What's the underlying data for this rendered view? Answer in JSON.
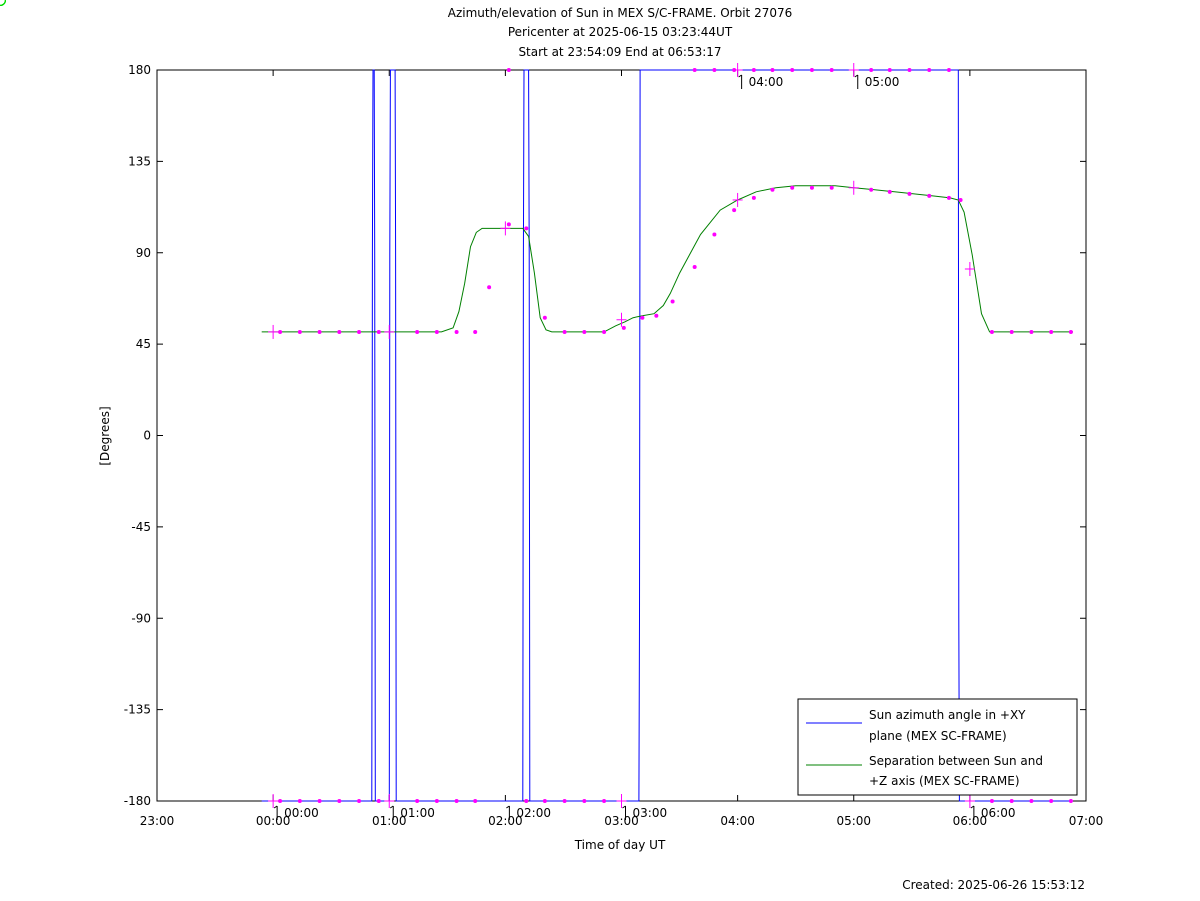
{
  "chart_data": {
    "type": "line",
    "title": "Azimuth/elevation of Sun in MEX S/C-FRAME.  Orbit 27076",
    "subtitle": "Pericenter at 2025-06-15 03:23:44UT",
    "subtitle2": "Start at 23:54:09 End at 06:53:17",
    "xlabel": "Time of day UT",
    "ylabel": "[Degrees]",
    "footer": "Created: 2025-06-26 15:53:12",
    "x_unit": "hours since 23:00 UT",
    "xlim": [
      0,
      8
    ],
    "ylim": [
      -180,
      180
    ],
    "x_ticks": [
      {
        "x": 0,
        "label": "23:00"
      },
      {
        "x": 1,
        "label": "00:00"
      },
      {
        "x": 2,
        "label": "01:00"
      },
      {
        "x": 3,
        "label": "02:00"
      },
      {
        "x": 4,
        "label": "03:00"
      },
      {
        "x": 5,
        "label": "04:00"
      },
      {
        "x": 6,
        "label": "05:00"
      },
      {
        "x": 7,
        "label": "06:00"
      },
      {
        "x": 8,
        "label": "07:00"
      }
    ],
    "y_ticks": [
      {
        "y": 180,
        "label": "180"
      },
      {
        "y": 135,
        "label": "135"
      },
      {
        "y": 90,
        "label": "90"
      },
      {
        "y": 45,
        "label": "45"
      },
      {
        "y": 0,
        "label": "0"
      },
      {
        "y": -45,
        "label": "-45"
      },
      {
        "y": -90,
        "label": "-90"
      },
      {
        "y": -135,
        "label": "-135"
      },
      {
        "y": -180,
        "label": "-180"
      }
    ],
    "hour_marks": [
      {
        "x": 1.0,
        "y": -180,
        "label": "00:00"
      },
      {
        "x": 2.0,
        "y": -180,
        "label": "01:00"
      },
      {
        "x": 3.0,
        "y": -180,
        "label": "02:00"
      },
      {
        "x": 4.0,
        "y": -180,
        "label": "03:00"
      },
      {
        "x": 5.0,
        "y": 180,
        "label": "04:00"
      },
      {
        "x": 6.0,
        "y": 180,
        "label": "05:00"
      },
      {
        "x": 7.0,
        "y": -180,
        "label": "06:00"
      }
    ],
    "circle_marks": [
      {
        "x": 0.902,
        "y": 51
      },
      {
        "x": 0.902,
        "y": -180
      },
      {
        "x": 4.396,
        "y": 71
      },
      {
        "x": 4.396,
        "y": 180
      },
      {
        "x": 7.888,
        "y": 51
      },
      {
        "x": 7.888,
        "y": -180
      }
    ],
    "series": [
      {
        "name": "Sun azimuth angle in +XY plane (MEX SC-FRAME)",
        "color": "#0000ff",
        "points": [
          [
            0.902,
            -180
          ],
          [
            1.85,
            -180
          ],
          [
            1.855,
            90
          ],
          [
            1.86,
            180
          ],
          [
            1.87,
            180
          ],
          [
            1.875,
            90
          ],
          [
            1.88,
            -180
          ],
          [
            2.0,
            -180
          ],
          [
            2.005,
            90
          ],
          [
            2.01,
            180
          ],
          [
            2.05,
            180
          ],
          [
            2.055,
            90
          ],
          [
            2.06,
            -180
          ],
          [
            2.07,
            -180
          ],
          [
            3.15,
            -180
          ],
          [
            3.155,
            90
          ],
          [
            3.16,
            180
          ],
          [
            3.2,
            180
          ],
          [
            3.205,
            90
          ],
          [
            3.21,
            -180
          ],
          [
            4.15,
            -180
          ],
          [
            4.155,
            -90
          ],
          [
            4.16,
            180
          ],
          [
            6.9,
            180
          ],
          [
            6.905,
            -90
          ],
          [
            6.91,
            -180
          ],
          [
            7.888,
            -180
          ]
        ]
      },
      {
        "name": "Separation between Sun and +Z axis (MEX SC-FRAME)",
        "color": "#008000",
        "points": [
          [
            0.902,
            51
          ],
          [
            1.5,
            51
          ],
          [
            2.0,
            51
          ],
          [
            2.45,
            51
          ],
          [
            2.55,
            53
          ],
          [
            2.6,
            61
          ],
          [
            2.65,
            75
          ],
          [
            2.7,
            93
          ],
          [
            2.75,
            100
          ],
          [
            2.8,
            102
          ],
          [
            3.0,
            102
          ],
          [
            3.15,
            102
          ],
          [
            3.2,
            98
          ],
          [
            3.25,
            80
          ],
          [
            3.3,
            58
          ],
          [
            3.35,
            52
          ],
          [
            3.4,
            51
          ],
          [
            3.5,
            51
          ],
          [
            3.85,
            51
          ],
          [
            3.95,
            54
          ],
          [
            4.03,
            56
          ],
          [
            4.1,
            58
          ],
          [
            4.18,
            59
          ],
          [
            4.28,
            60
          ],
          [
            4.36,
            64
          ],
          [
            4.42,
            70
          ],
          [
            4.5,
            80
          ],
          [
            4.68,
            99
          ],
          [
            4.85,
            111
          ],
          [
            5.0,
            116
          ],
          [
            5.16,
            120
          ],
          [
            5.33,
            122
          ],
          [
            5.5,
            123
          ],
          [
            5.67,
            123
          ],
          [
            5.84,
            123
          ],
          [
            6.0,
            122
          ],
          [
            6.18,
            121
          ],
          [
            6.35,
            120
          ],
          [
            6.52,
            119
          ],
          [
            6.68,
            118
          ],
          [
            6.83,
            117
          ],
          [
            6.9,
            116
          ],
          [
            6.95,
            110
          ],
          [
            7.02,
            89
          ],
          [
            7.1,
            60
          ],
          [
            7.17,
            51
          ],
          [
            7.3,
            51
          ],
          [
            7.6,
            51
          ],
          [
            7.888,
            51
          ]
        ]
      }
    ],
    "sample_markers": {
      "color": "#ff00ff",
      "points": [
        [
          1.06,
          51
        ],
        [
          1.23,
          51
        ],
        [
          1.4,
          51
        ],
        [
          1.57,
          51
        ],
        [
          1.74,
          51
        ],
        [
          1.91,
          51
        ],
        [
          2.24,
          51
        ],
        [
          2.41,
          51
        ],
        [
          2.58,
          51
        ],
        [
          2.74,
          51
        ],
        [
          2.86,
          73
        ],
        [
          3.03,
          104
        ],
        [
          3.18,
          102
        ],
        [
          3.34,
          58
        ],
        [
          3.51,
          51
        ],
        [
          3.68,
          51
        ],
        [
          3.85,
          51
        ],
        [
          4.02,
          53
        ],
        [
          4.18,
          58
        ],
        [
          4.3,
          59
        ],
        [
          4.44,
          66
        ],
        [
          4.63,
          83
        ],
        [
          4.8,
          99
        ],
        [
          4.97,
          111
        ],
        [
          5.14,
          117
        ],
        [
          5.3,
          121
        ],
        [
          5.47,
          122
        ],
        [
          5.64,
          122
        ],
        [
          5.81,
          122
        ],
        [
          6.15,
          121
        ],
        [
          6.31,
          120
        ],
        [
          6.48,
          119
        ],
        [
          6.65,
          118
        ],
        [
          6.82,
          117
        ],
        [
          6.92,
          116
        ],
        [
          7.19,
          51
        ],
        [
          7.36,
          51
        ],
        [
          7.53,
          51
        ],
        [
          7.7,
          51
        ],
        [
          7.87,
          51
        ],
        [
          1.06,
          -180
        ],
        [
          1.23,
          -180
        ],
        [
          1.4,
          -180
        ],
        [
          1.57,
          -180
        ],
        [
          1.74,
          -180
        ],
        [
          1.91,
          -180
        ],
        [
          2.24,
          -180
        ],
        [
          2.41,
          -180
        ],
        [
          2.58,
          -180
        ],
        [
          2.74,
          -180
        ],
        [
          3.18,
          -180
        ],
        [
          3.34,
          -180
        ],
        [
          3.51,
          -180
        ],
        [
          3.68,
          -180
        ],
        [
          3.85,
          -180
        ],
        [
          4.63,
          180
        ],
        [
          4.8,
          180
        ],
        [
          4.97,
          180
        ],
        [
          5.14,
          180
        ],
        [
          5.3,
          180
        ],
        [
          5.47,
          180
        ],
        [
          5.64,
          180
        ],
        [
          5.81,
          180
        ],
        [
          6.15,
          180
        ],
        [
          6.31,
          180
        ],
        [
          6.48,
          180
        ],
        [
          6.65,
          180
        ],
        [
          6.82,
          180
        ],
        [
          7.19,
          -180
        ],
        [
          7.36,
          -180
        ],
        [
          7.53,
          -180
        ],
        [
          7.7,
          -180
        ],
        [
          7.87,
          -180
        ],
        [
          3.03,
          180
        ]
      ]
    },
    "cross_marks": [
      [
        1.0,
        51
      ],
      [
        2.0,
        51
      ],
      [
        3.0,
        102
      ],
      [
        4.0,
        57
      ],
      [
        5.0,
        116
      ],
      [
        6.0,
        122
      ],
      [
        7.0,
        82
      ],
      [
        1.0,
        -180
      ],
      [
        2.0,
        -180
      ],
      [
        4.0,
        -180
      ],
      [
        5.0,
        180
      ],
      [
        6.0,
        180
      ],
      [
        7.0,
        -180
      ]
    ],
    "legend": {
      "placement": "bottom-right",
      "entries": [
        {
          "line1": "Sun azimuth angle in +XY",
          "line2": "plane (MEX SC-FRAME)",
          "color": "#0000ff"
        },
        {
          "line1": "Separation between Sun and",
          "line2": "+Z axis (MEX SC-FRAME)",
          "color": "#008000"
        }
      ]
    },
    "grid": false
  }
}
